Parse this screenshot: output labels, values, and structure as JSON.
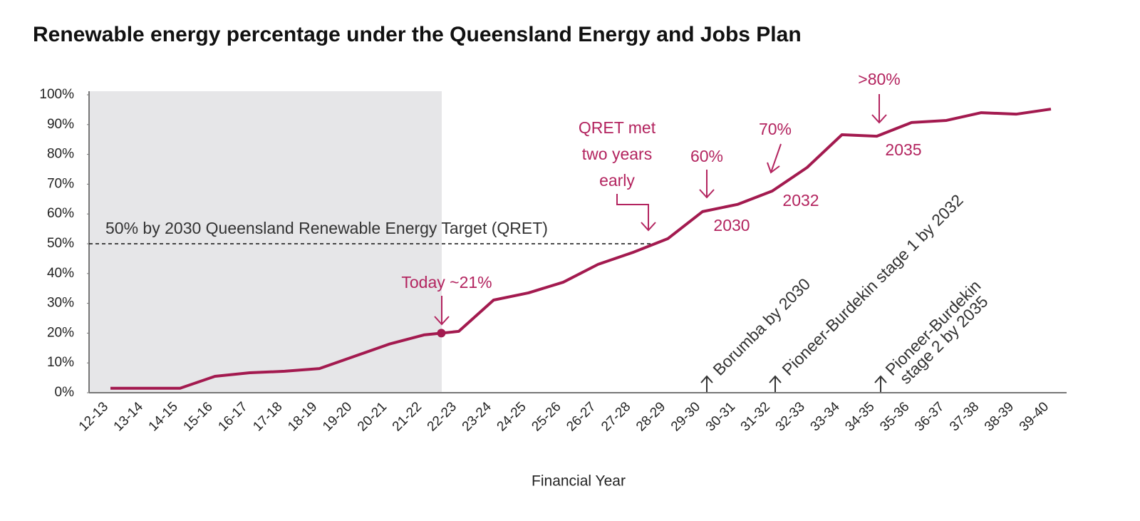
{
  "chart_data": {
    "type": "line",
    "title": "Renewable energy percentage under the Queensland Energy and Jobs Plan",
    "x_label": "Financial Year",
    "categories": [
      "12-13",
      "13-14",
      "14-15",
      "15-16",
      "16-17",
      "17-18",
      "18-19",
      "19-20",
      "20-21",
      "21-22",
      "22-23",
      "23-24",
      "24-25",
      "25-26",
      "26-27",
      "27-28",
      "28-29",
      "29-30",
      "30-31",
      "31-32",
      "32-33",
      "33-34",
      "34-35",
      "35-36",
      "36-37",
      "37-38",
      "38-39",
      "39-40"
    ],
    "series": [
      {
        "name": "Renewable energy percentage",
        "color": "#a31a4f",
        "values": [
          1.5,
          1.5,
          1.5,
          5.5,
          6.7,
          7.2,
          8.1,
          12.2,
          16.3,
          19.4,
          20.6,
          31.1,
          33.5,
          37.1,
          43.1,
          47.1,
          51.7,
          60.8,
          63.2,
          67.7,
          75.6,
          86.6,
          86.1,
          90.7,
          91.4,
          94.0,
          93.5,
          95.2
        ]
      }
    ],
    "ylim": [
      0,
      100
    ],
    "yticks": [
      {
        "value": 0,
        "label": "0%"
      },
      {
        "value": 10,
        "label": "10%"
      },
      {
        "value": 20,
        "label": "20%"
      },
      {
        "value": 30,
        "label": "30%"
      },
      {
        "value": 40,
        "label": "40%"
      },
      {
        "value": 50,
        "label": "50%"
      },
      {
        "value": 60,
        "label": "60%"
      },
      {
        "value": 70,
        "label": "70%"
      },
      {
        "value": 80,
        "label": "80%"
      },
      {
        "value": 90,
        "label": "90%"
      },
      {
        "value": 100,
        "label": "100%"
      }
    ],
    "target_line": 50,
    "annotations": [
      "50% by 2030 Queensland Renewable Energy Target (QRET)",
      "Today ~21%",
      "QRET met",
      "two years",
      "early",
      "60%",
      "2030",
      "70%",
      "2032",
      ">80%",
      "2035",
      "Borumba by 2030",
      "Pioneer-Burdekin stage 1 by 2032",
      "Pioneer-Burdekin",
      "stage 2 by 2035"
    ]
  }
}
